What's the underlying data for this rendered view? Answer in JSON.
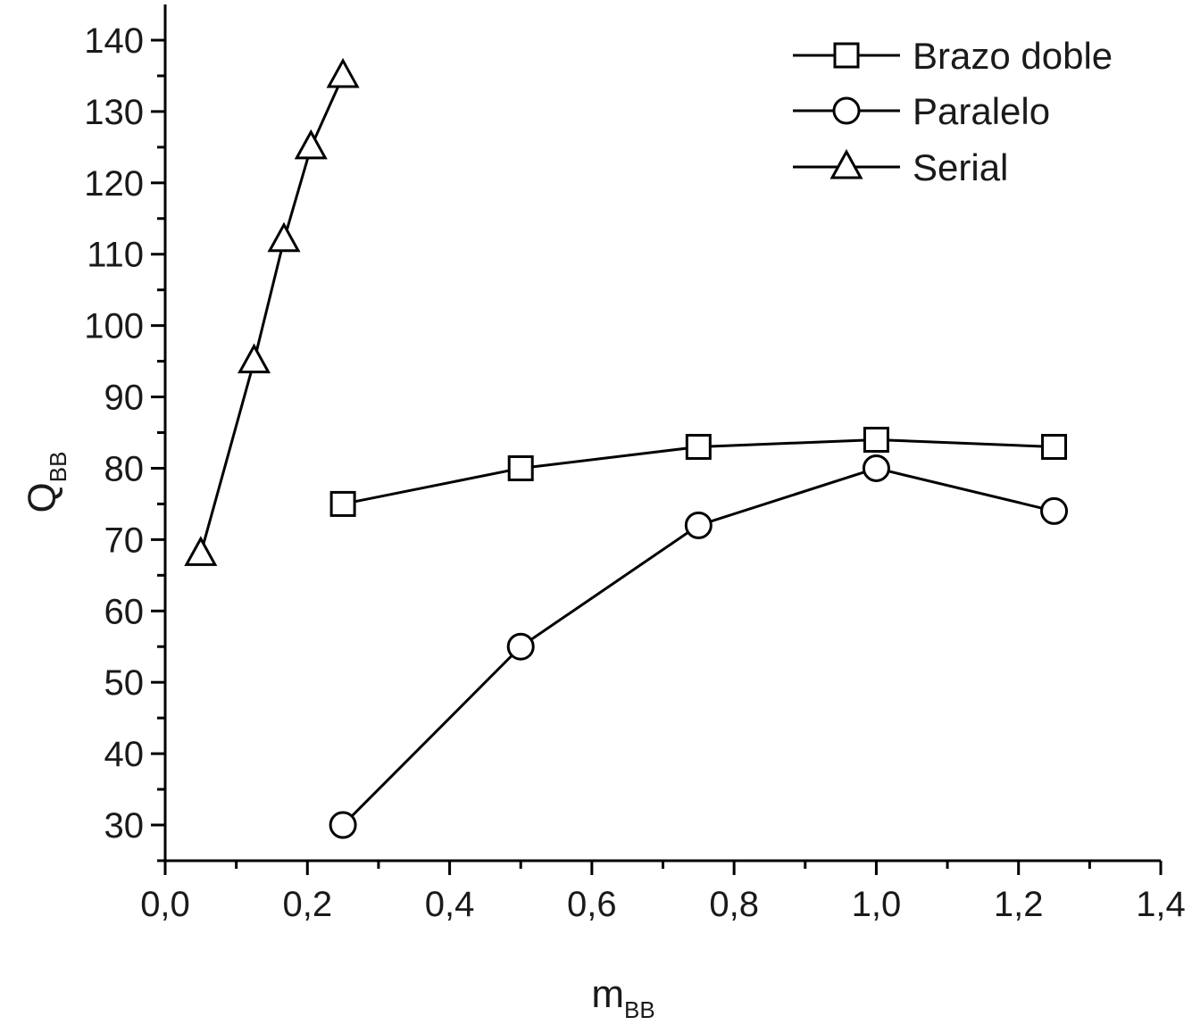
{
  "chart_data": {
    "type": "line",
    "xlabel": "m",
    "xlabel_sub": "BB",
    "ylabel": "Q",
    "ylabel_sub": "BB",
    "xlim": [
      0.0,
      1.4
    ],
    "ylim": [
      25,
      140
    ],
    "xticks": [
      0.0,
      0.2,
      0.4,
      0.6,
      0.8,
      1.0,
      1.2,
      1.4
    ],
    "xtick_labels": [
      "0,0",
      "0,2",
      "0,4",
      "0,6",
      "0,8",
      "1,0",
      "1,2",
      "1,4"
    ],
    "yticks": [
      30,
      40,
      50,
      60,
      70,
      80,
      90,
      100,
      110,
      120,
      130,
      140
    ],
    "ytick_labels": [
      "30",
      "40",
      "50",
      "60",
      "70",
      "80",
      "90",
      "100",
      "110",
      "120",
      "130",
      "140"
    ],
    "grid": false,
    "legend_position": "top-right",
    "series": [
      {
        "name": "Brazo doble",
        "marker": "square",
        "x": [
          0.25,
          0.5,
          0.75,
          1.0,
          1.25
        ],
        "y": [
          75,
          80,
          83,
          84,
          83
        ]
      },
      {
        "name": "Paralelo",
        "marker": "circle",
        "x": [
          0.25,
          0.5,
          0.75,
          1.0,
          1.25
        ],
        "y": [
          30,
          55,
          72,
          80,
          74
        ]
      },
      {
        "name": "Serial",
        "marker": "triangle",
        "x": [
          0.05,
          0.125,
          0.167,
          0.205,
          0.25
        ],
        "y": [
          68,
          95,
          112,
          125,
          135
        ]
      }
    ]
  }
}
